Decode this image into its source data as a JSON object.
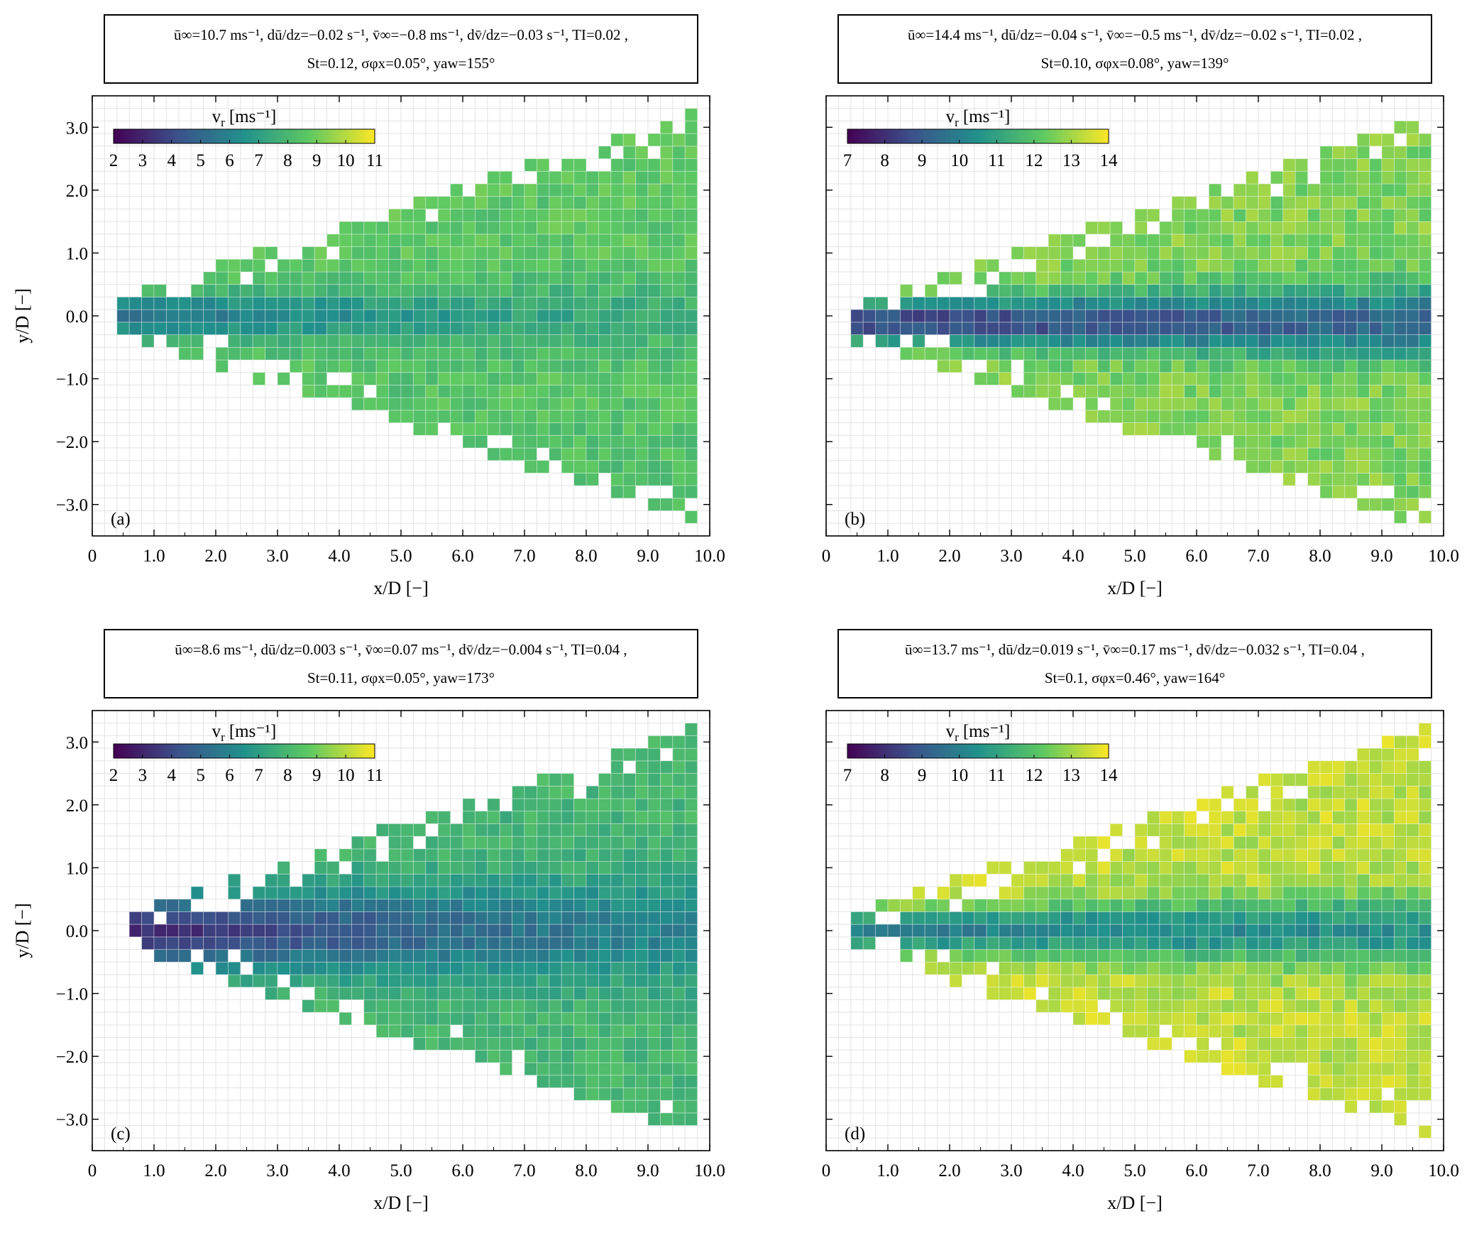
{
  "figure": {
    "axis_labels": {
      "x": "x/D [−]",
      "y": "y/D [−]"
    },
    "colorbar_label": "v",
    "colorbar_label_sub": "r",
    "colorbar_label_units": "[ms⁻¹]",
    "colormap": [
      "#440154",
      "#3b528b",
      "#21918c",
      "#5ec962",
      "#fde725"
    ]
  },
  "panels": [
    {
      "label": "(a)",
      "info_line1": "ū∞=10.7 ms⁻¹, dū/dz=−0.02 s⁻¹, v̄∞=−0.8 ms⁻¹, dv̄/dz=−0.03 s⁻¹, TI=0.02 ,",
      "info_line2": "St=0.12, σφx=0.05°, yaw=155°"
    },
    {
      "label": "(b)",
      "info_line1": "ū∞=14.4 ms⁻¹, dū/dz=−0.04 s⁻¹, v̄∞=−0.5 ms⁻¹, dv̄/dz=−0.02 s⁻¹, TI=0.02 ,",
      "info_line2": "St=0.10, σφx=0.08°, yaw=139°"
    },
    {
      "label": "(c)",
      "info_line1": "ū∞=8.6 ms⁻¹, dū/dz=0.003 s⁻¹, v̄∞=0.07 ms⁻¹, dv̄/dz=−0.004 s⁻¹, TI=0.04 ,",
      "info_line2": "St=0.11, σφx=0.05°, yaw=173°"
    },
    {
      "label": "(d)",
      "info_line1": "ū∞=13.7 ms⁻¹, dū/dz=0.019 s⁻¹, v̄∞=0.17 ms⁻¹, dv̄/dz=−0.032 s⁻¹, TI=0.04 ,",
      "info_line2": "St=0.1, σφx=0.46°, yaw=164°"
    }
  ],
  "chart_data": [
    {
      "type": "heatmap",
      "title": "(a)",
      "xlabel": "x/D [−]",
      "ylabel": "y/D [−]",
      "xlim": [
        0,
        10
      ],
      "ylim": [
        -3.5,
        3.5
      ],
      "xticks": [
        "0",
        "1.0",
        "2.0",
        "3.0",
        "4.0",
        "5.0",
        "6.0",
        "7.0",
        "8.0",
        "9.0",
        "10.0"
      ],
      "yticks": [
        "3.0",
        "2.0",
        "1.0",
        "0.0",
        "−1.0",
        "−2.0",
        "−3.0"
      ],
      "colorbar_range": [
        2,
        11
      ],
      "colorbar_ticks": [
        "2",
        "3",
        "4",
        "5",
        "6",
        "7",
        "8",
        "9",
        "10",
        "11"
      ],
      "wake": {
        "x_start": 0.4,
        "x_end": 9.8,
        "half_width_start": 0.3,
        "half_width_end": 3.3,
        "skew": 0.3,
        "center_y": 0.0,
        "deficit_value": 5.0,
        "deficit_half_width": 0.3,
        "deficit_decay_length": 7.0,
        "ambient_value": 8.6
      }
    },
    {
      "type": "heatmap",
      "title": "(b)",
      "xlabel": "x/D [−]",
      "ylabel": "",
      "xlim": [
        0,
        10
      ],
      "ylim": [
        -3.5,
        3.5
      ],
      "xticks": [
        "0",
        "1.0",
        "2.0",
        "3.0",
        "4.0",
        "5.0",
        "6.0",
        "7.0",
        "8.0",
        "9.0",
        "10.0"
      ],
      "yticks": [],
      "colorbar_range": [
        7,
        14
      ],
      "colorbar_ticks": [
        "7",
        "8",
        "9",
        "10",
        "11",
        "12",
        "13",
        "14"
      ],
      "wake": {
        "x_start": 0.4,
        "x_end": 9.8,
        "half_width_start": 0.3,
        "half_width_end": 3.3,
        "skew": 0.0,
        "center_y": -0.1,
        "deficit_value": 8.2,
        "deficit_half_width": 0.3,
        "deficit_decay_length": 30.0,
        "ambient_value": 12.6
      }
    },
    {
      "type": "heatmap",
      "title": "(c)",
      "xlabel": "x/D [−]",
      "ylabel": "y/D [−]",
      "xlim": [
        0,
        10
      ],
      "ylim": [
        -3.5,
        3.5
      ],
      "xticks": [
        "0",
        "1.0",
        "2.0",
        "3.0",
        "4.0",
        "5.0",
        "6.0",
        "7.0",
        "8.0",
        "9.0",
        "10.0"
      ],
      "yticks": [
        "3.0",
        "2.0",
        "1.0",
        "0.0",
        "−1.0",
        "−2.0",
        "−3.0"
      ],
      "colorbar_range": [
        2,
        11
      ],
      "colorbar_ticks": [
        "2",
        "3",
        "4",
        "5",
        "6",
        "7",
        "8",
        "9",
        "10",
        "11"
      ],
      "wake": {
        "x_start": 0.6,
        "x_end": 9.8,
        "half_width_start": 0.3,
        "half_width_end": 3.3,
        "skew": 0.0,
        "center_y": 0.0,
        "deficit_value": 3.0,
        "deficit_half_width": 0.55,
        "deficit_decay_length": 9.0,
        "ambient_value": 7.9
      }
    },
    {
      "type": "heatmap",
      "title": "(d)",
      "xlabel": "x/D [−]",
      "ylabel": "",
      "xlim": [
        0,
        10
      ],
      "ylim": [
        -3.5,
        3.5
      ],
      "xticks": [
        "0",
        "1.0",
        "2.0",
        "3.0",
        "4.0",
        "5.0",
        "6.0",
        "7.0",
        "8.0",
        "9.0",
        "10.0"
      ],
      "yticks": [],
      "colorbar_range": [
        7,
        14
      ],
      "colorbar_ticks": [
        "7",
        "8",
        "9",
        "10",
        "11",
        "12",
        "13",
        "14"
      ],
      "wake": {
        "x_start": 0.4,
        "x_end": 9.8,
        "half_width_start": 0.3,
        "half_width_end": 3.3,
        "skew": 0.0,
        "center_y": 0.0,
        "deficit_value": 9.8,
        "deficit_half_width": 0.3,
        "deficit_decay_length": 40.0,
        "ambient_value": 13.3
      }
    }
  ]
}
